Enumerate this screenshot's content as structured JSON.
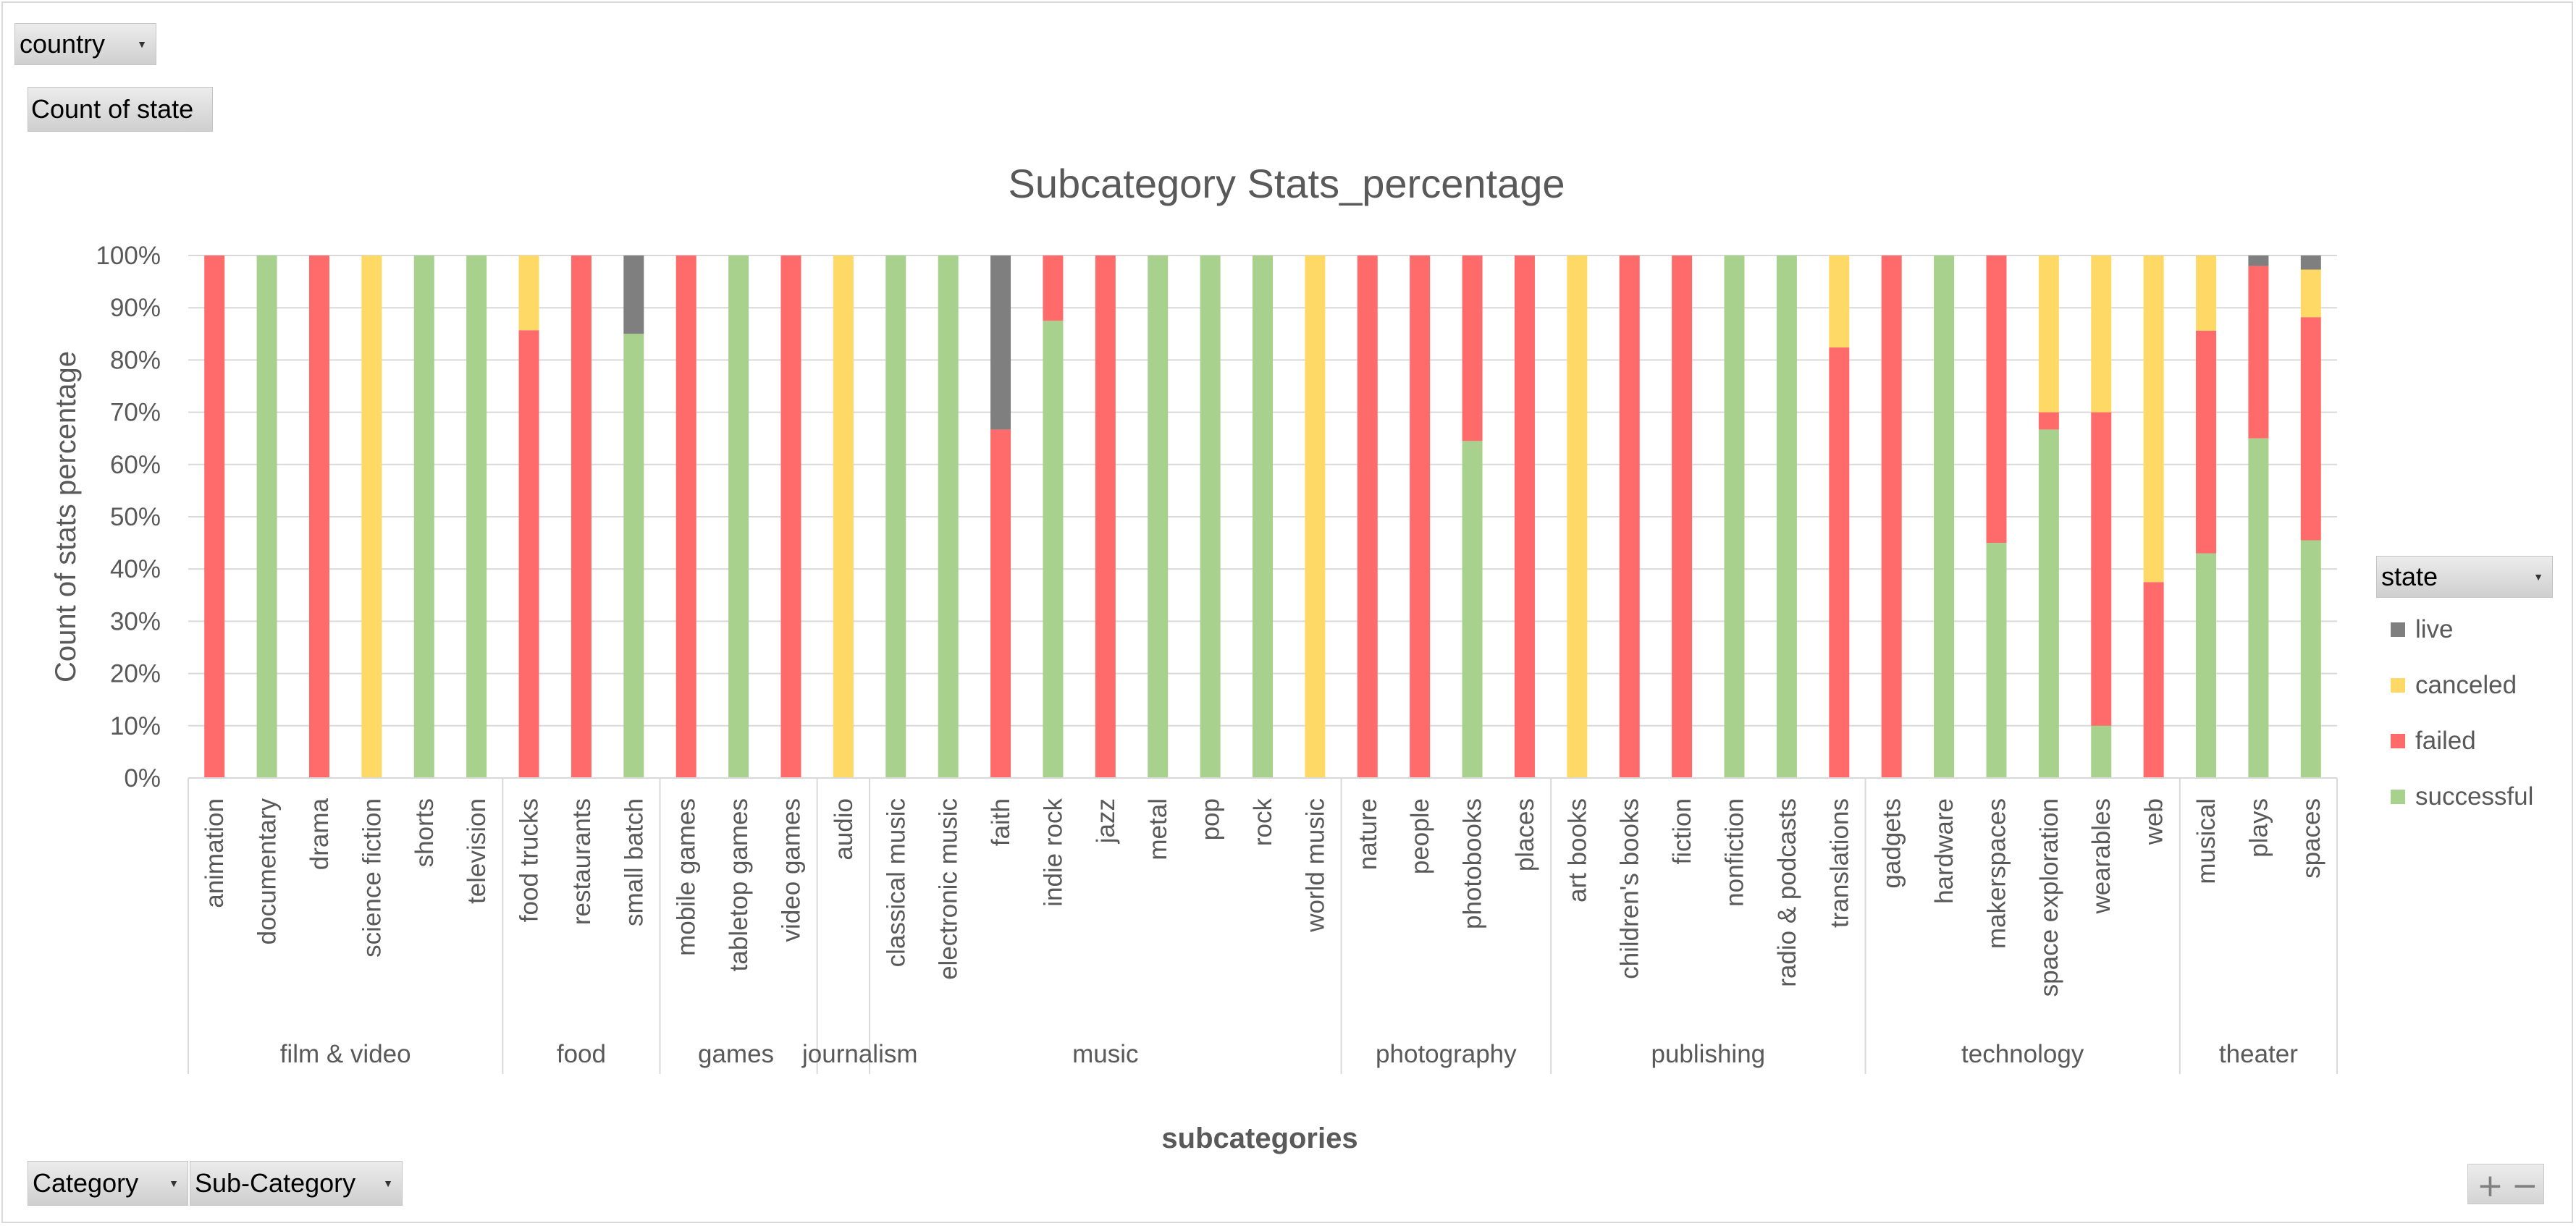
{
  "pivot": {
    "country_label": "country",
    "value_field_label": "Count of state",
    "category_label": "Category",
    "subcategory_label": "Sub-Category",
    "legend_field_label": "state",
    "zoom_in": "+",
    "zoom_out": "−"
  },
  "colors": {
    "live": "#7f7f7f",
    "canceled": "#ffd966",
    "failed": "#ff6b6b",
    "successful": "#a9d18e",
    "grid": "#d9d9d9",
    "text": "#595959"
  },
  "legend": [
    {
      "key": "live",
      "label": "live"
    },
    {
      "key": "canceled",
      "label": "canceled"
    },
    {
      "key": "failed",
      "label": "failed"
    },
    {
      "key": "successful",
      "label": "successful"
    }
  ],
  "chart_data": {
    "type": "bar",
    "stacked": "percent",
    "title": "Subcategory Stats_percentage",
    "xlabel": "subcategories",
    "ylabel": "Count of stats percentage",
    "ylim": [
      0,
      100
    ],
    "yticks": [
      "0%",
      "10%",
      "20%",
      "30%",
      "40%",
      "50%",
      "60%",
      "70%",
      "80%",
      "90%",
      "100%"
    ],
    "grid": true,
    "legend_position": "right",
    "categories": [
      "animation",
      "documentary",
      "drama",
      "science fiction",
      "shorts",
      "television",
      "food trucks",
      "restaurants",
      "small batch",
      "mobile games",
      "tabletop games",
      "video games",
      "audio",
      "classical music",
      "electronic music",
      "faith",
      "indie rock",
      "jazz",
      "metal",
      "pop",
      "rock",
      "world music",
      "nature",
      "people",
      "photobooks",
      "places",
      "art books",
      "children's books",
      "fiction",
      "nonfiction",
      "radio & podcasts",
      "translations",
      "gadgets",
      "hardware",
      "makerspaces",
      "space exploration",
      "wearables",
      "web",
      "musical",
      "plays",
      "spaces"
    ],
    "groups": [
      {
        "label": "film & video",
        "count": 6
      },
      {
        "label": "food",
        "count": 3
      },
      {
        "label": "games",
        "count": 3
      },
      {
        "label": "journalism",
        "count": 1
      },
      {
        "label": "music",
        "count": 9
      },
      {
        "label": "photography",
        "count": 4
      },
      {
        "label": "publishing",
        "count": 6
      },
      {
        "label": "technology",
        "count": 6
      },
      {
        "label": "theater",
        "count": 3
      }
    ],
    "series": [
      {
        "name": "successful",
        "values": [
          0,
          100,
          0,
          0,
          100,
          100,
          0,
          0,
          85,
          0,
          100,
          0,
          0,
          100,
          100,
          0,
          87.5,
          0,
          100,
          100,
          100,
          0,
          0,
          0,
          64.5,
          0,
          0,
          0,
          0,
          100,
          100,
          0,
          0,
          100,
          45,
          66.7,
          10,
          0,
          43,
          65,
          45.5
        ]
      },
      {
        "name": "failed",
        "values": [
          100,
          0,
          100,
          0,
          0,
          0,
          85.7,
          100,
          0,
          100,
          0,
          100,
          0,
          0,
          0,
          66.7,
          12.5,
          100,
          0,
          0,
          0,
          0,
          100,
          100,
          35.5,
          100,
          0,
          100,
          100,
          0,
          0,
          82.4,
          100,
          0,
          55,
          3.3,
          60,
          37.5,
          42.6,
          33,
          42.7
        ]
      },
      {
        "name": "canceled",
        "values": [
          0,
          0,
          0,
          100,
          0,
          0,
          14.3,
          0,
          0,
          0,
          0,
          0,
          100,
          0,
          0,
          0,
          0,
          0,
          0,
          0,
          0,
          100,
          0,
          0,
          0,
          0,
          100,
          0,
          0,
          0,
          0,
          17.6,
          0,
          0,
          0,
          30,
          30,
          62.5,
          14.4,
          0,
          9.1
        ]
      },
      {
        "name": "live",
        "values": [
          0,
          0,
          0,
          0,
          0,
          0,
          0,
          0,
          15,
          0,
          0,
          0,
          0,
          0,
          0,
          33.3,
          0,
          0,
          0,
          0,
          0,
          0,
          0,
          0,
          0,
          0,
          0,
          0,
          0,
          0,
          0,
          0,
          0,
          0,
          0,
          0,
          0,
          0,
          0,
          2,
          2.7
        ]
      }
    ]
  }
}
